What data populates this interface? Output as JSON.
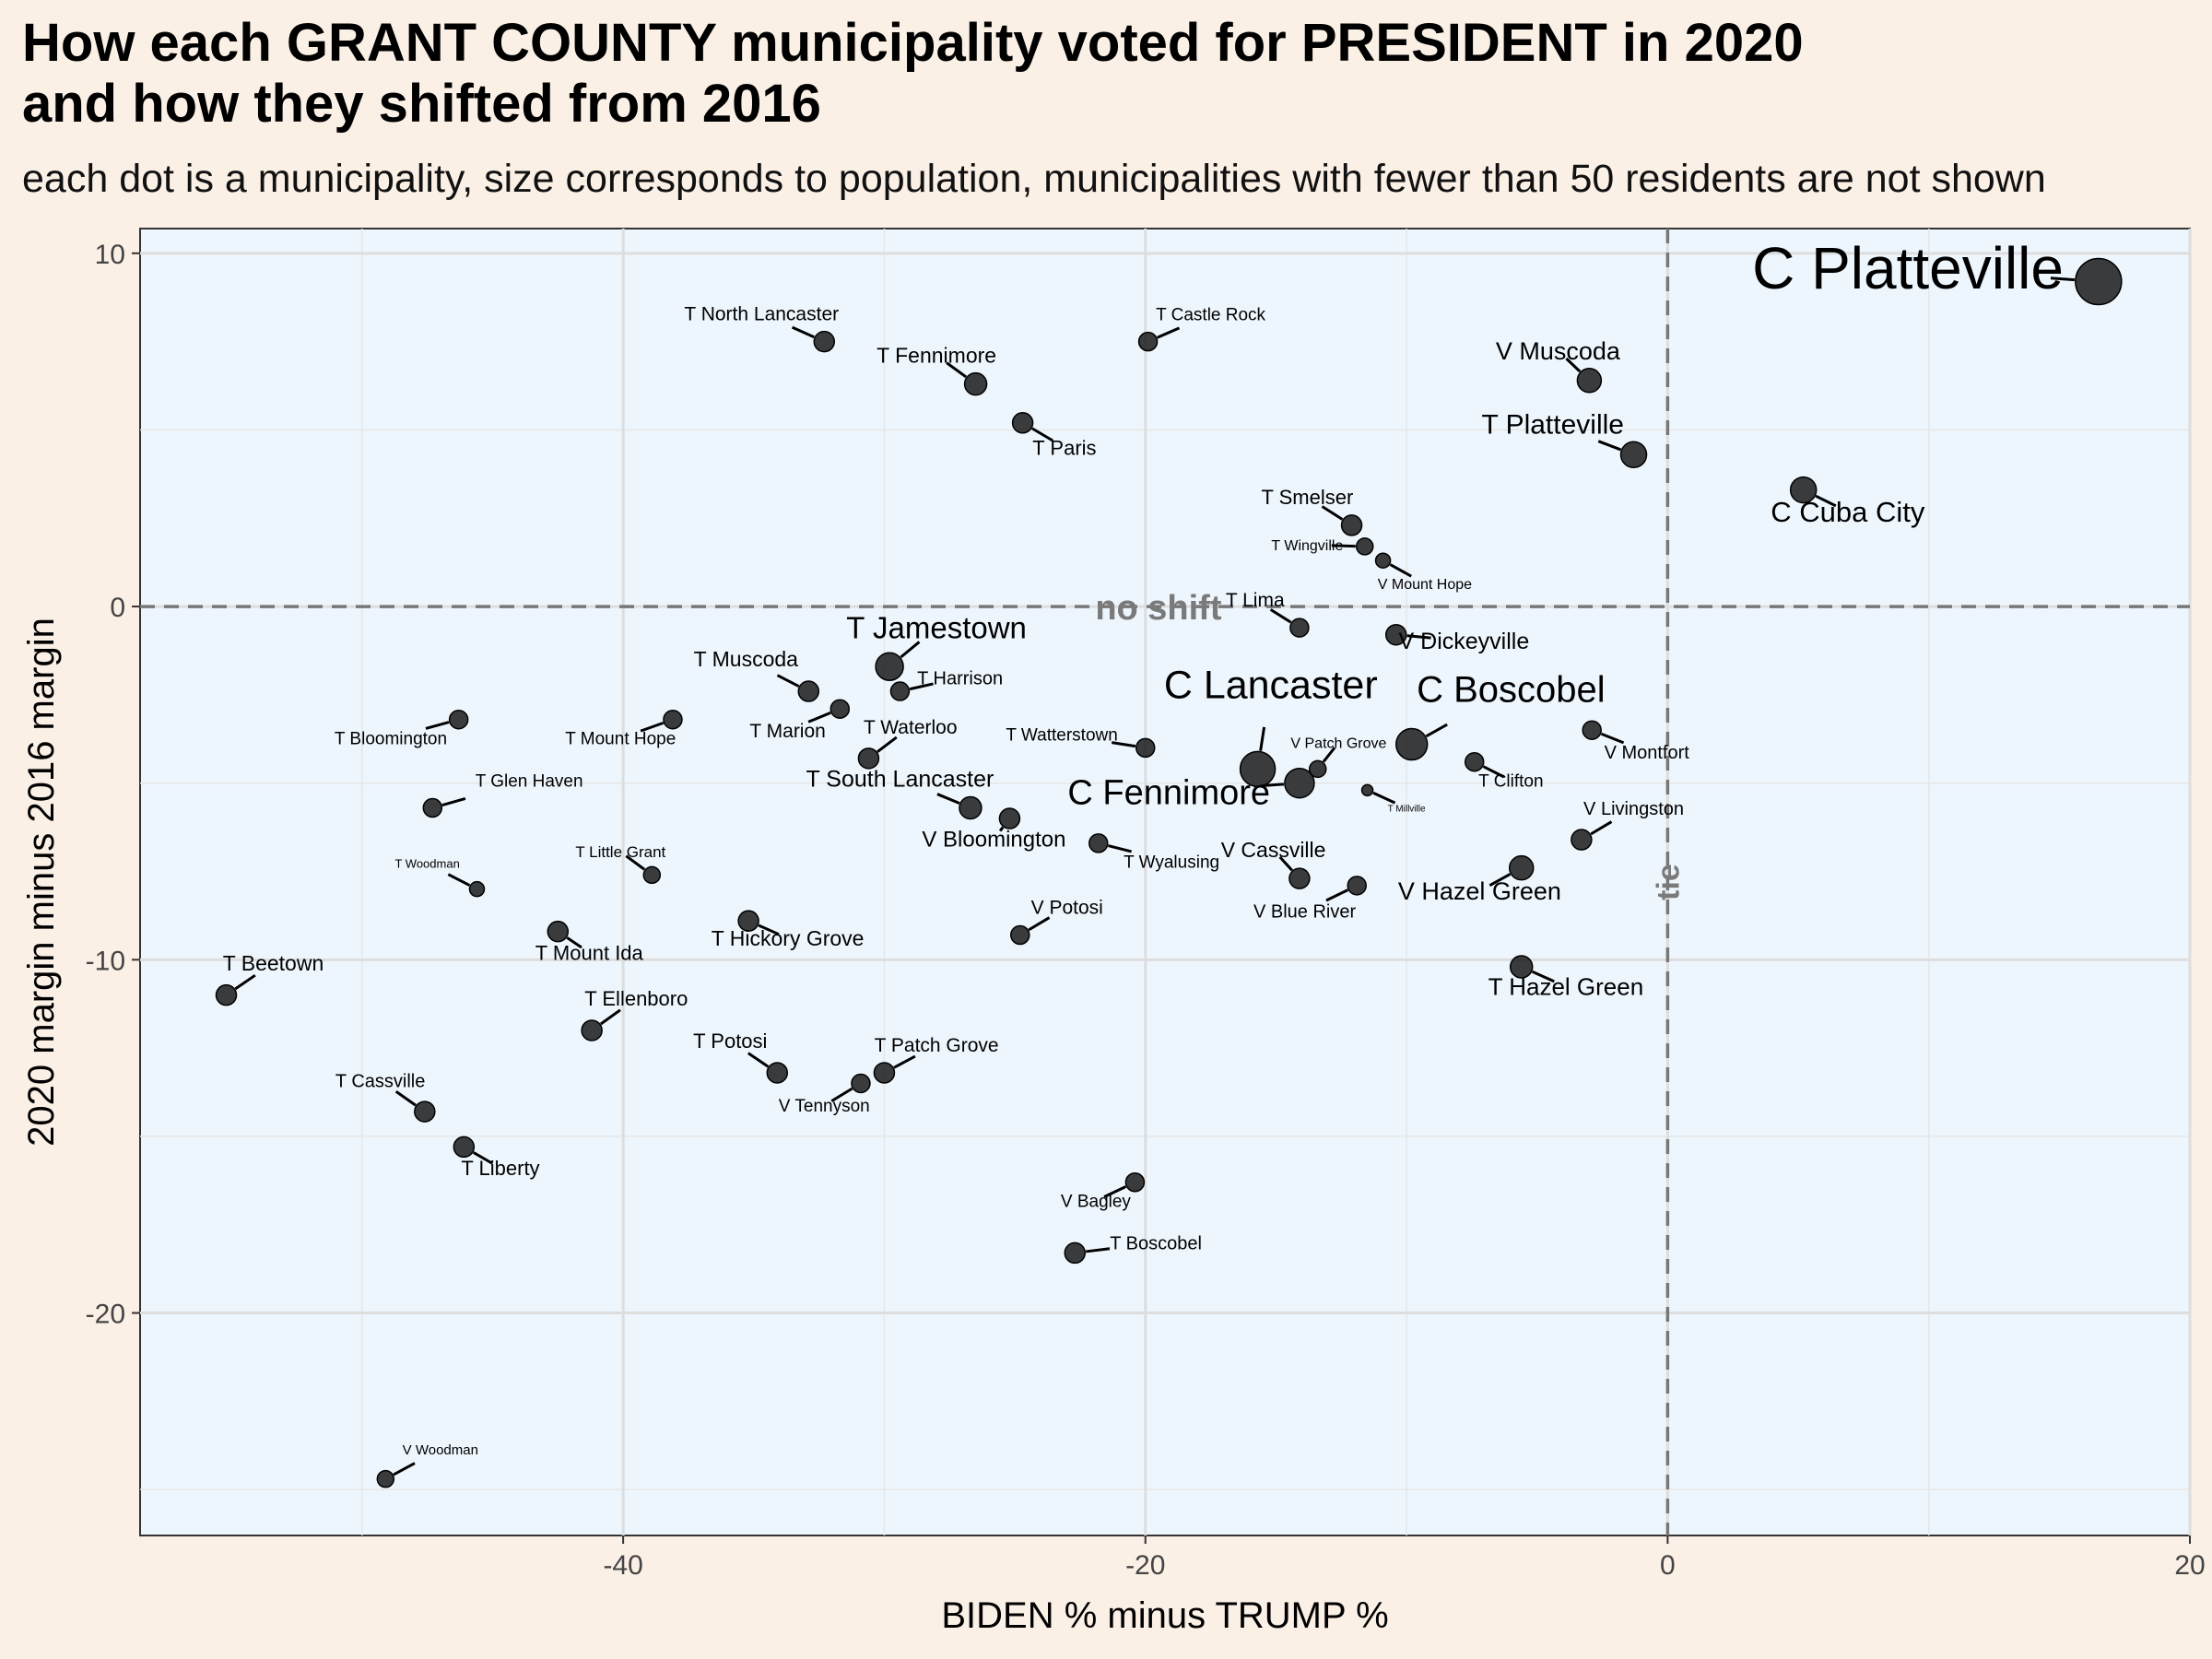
{
  "chart_data": {
    "type": "scatter",
    "title_line1": "How each GRANT COUNTY municipality voted for PRESIDENT in 2020",
    "title_line2": "and how they shifted from 2016",
    "subtitle": "each dot is a municipality, size corresponds to population, municipalities with fewer than 50 residents are not shown",
    "xlabel": "BIDEN % minus TRUMP %",
    "ylabel": "2020 margin minus 2016 margin",
    "xlim": [
      -58.5,
      20
    ],
    "ylim": [
      -26.3,
      10.7
    ],
    "xticks": [
      -40,
      -20,
      0,
      20
    ],
    "yticks": [
      10,
      0,
      -10,
      -20
    ],
    "tick_labels_x": [
      "-40",
      "-20",
      "0",
      "20"
    ],
    "tick_labels_y": [
      "10",
      "0",
      "-10",
      "-20"
    ],
    "hline_label": "no shift",
    "vline_label": "tie",
    "point_color": "#1a1a1a",
    "panel_color": "#eef6fd",
    "points": [
      {
        "name": "C Platteville",
        "x": 16.5,
        "y": 9.2,
        "r": 25,
        "lx": 9.2,
        "ly": 9.0,
        "fs": 64
      },
      {
        "name": "V Muscoda",
        "x": -3.0,
        "y": 6.4,
        "r": 13,
        "lx": -4.2,
        "ly": 7.0,
        "fs": 27
      },
      {
        "name": "T Platteville",
        "x": -1.3,
        "y": 4.3,
        "r": 14,
        "lx": -4.4,
        "ly": 4.9,
        "fs": 30
      },
      {
        "name": "C Cuba City",
        "x": 5.2,
        "y": 3.3,
        "r": 14,
        "lx": 6.9,
        "ly": 2.4,
        "fs": 31
      },
      {
        "name": "T North Lancaster",
        "x": -32.3,
        "y": 7.5,
        "r": 11,
        "lx": -34.7,
        "ly": 8.1,
        "fs": 21
      },
      {
        "name": "T Castle Rock",
        "x": -19.9,
        "y": 7.5,
        "r": 10,
        "lx": -17.5,
        "ly": 8.1,
        "fs": 19
      },
      {
        "name": "T Fennimore",
        "x": -26.5,
        "y": 6.3,
        "r": 12,
        "lx": -28.0,
        "ly": 6.9,
        "fs": 23
      },
      {
        "name": "T Paris",
        "x": -24.7,
        "y": 5.2,
        "r": 11,
        "lx": -23.1,
        "ly": 4.3,
        "fs": 22
      },
      {
        "name": "T Smelser",
        "x": -12.1,
        "y": 2.3,
        "r": 11,
        "lx": -13.8,
        "ly": 2.9,
        "fs": 22
      },
      {
        "name": "T Wingville",
        "x": -11.6,
        "y": 1.7,
        "r": 9,
        "lx": -13.8,
        "ly": 1.6,
        "fs": 16
      },
      {
        "name": "V Mount Hope",
        "x": -10.9,
        "y": 1.3,
        "r": 8,
        "lx": -9.3,
        "ly": 0.5,
        "fs": 16
      },
      {
        "name": "T Lima",
        "x": -14.1,
        "y": -0.6,
        "r": 10,
        "lx": -15.8,
        "ly": 0.0,
        "fs": 21
      },
      {
        "name": "V Dickeyville",
        "x": -10.4,
        "y": -0.8,
        "r": 11,
        "lx": -7.8,
        "ly": -1.2,
        "fs": 25
      },
      {
        "name": "T Jamestown",
        "x": -29.8,
        "y": -1.7,
        "r": 15,
        "lx": -28.0,
        "ly": -0.9,
        "fs": 33
      },
      {
        "name": "T Harrison",
        "x": -29.4,
        "y": -2.4,
        "r": 10,
        "lx": -27.1,
        "ly": -2.2,
        "fs": 20
      },
      {
        "name": "T Muscoda",
        "x": -32.9,
        "y": -2.4,
        "r": 11,
        "lx": -35.3,
        "ly": -1.7,
        "fs": 23
      },
      {
        "name": "T Marion",
        "x": -31.7,
        "y": -2.9,
        "r": 10,
        "lx": -33.7,
        "ly": -3.7,
        "fs": 21
      },
      {
        "name": "T Waterloo",
        "x": -30.6,
        "y": -4.3,
        "r": 11,
        "lx": -29.0,
        "ly": -3.6,
        "fs": 21
      },
      {
        "name": "T Bloomington",
        "x": -46.3,
        "y": -3.2,
        "r": 10,
        "lx": -48.9,
        "ly": -3.9,
        "fs": 19
      },
      {
        "name": "T Mount Hope",
        "x": -38.1,
        "y": -3.2,
        "r": 10,
        "lx": -40.1,
        "ly": -3.9,
        "fs": 19
      },
      {
        "name": "T Watterstown",
        "x": -20.0,
        "y": -4.0,
        "r": 10,
        "lx": -23.2,
        "ly": -3.8,
        "fs": 19
      },
      {
        "name": "C Lancaster",
        "x": -15.7,
        "y": -4.6,
        "r": 19,
        "lx": -15.2,
        "ly": -2.6,
        "fs": 43
      },
      {
        "name": "V Patch Grove",
        "x": -13.4,
        "y": -4.6,
        "r": 9,
        "lx": -12.6,
        "ly": -4.0,
        "fs": 16
      },
      {
        "name": "C Boscobel",
        "x": -9.8,
        "y": -3.9,
        "r": 17,
        "lx": -6.0,
        "ly": -2.7,
        "fs": 40
      },
      {
        "name": "T Clifton",
        "x": -7.4,
        "y": -4.4,
        "r": 10,
        "lx": -6.0,
        "ly": -5.1,
        "fs": 19
      },
      {
        "name": "V Montfort",
        "x": -2.9,
        "y": -3.5,
        "r": 10,
        "lx": -0.8,
        "ly": -4.3,
        "fs": 20
      },
      {
        "name": "C Fennimore",
        "x": -14.1,
        "y": -5.0,
        "r": 16,
        "lx": -19.1,
        "ly": -5.6,
        "fs": 38
      },
      {
        "name": "T Millville",
        "x": -11.5,
        "y": -5.2,
        "r": 6,
        "lx": -10.0,
        "ly": -5.8,
        "fs": 10
      },
      {
        "name": "T South Lancaster",
        "x": -26.7,
        "y": -5.7,
        "r": 12,
        "lx": -29.4,
        "ly": -5.1,
        "fs": 25
      },
      {
        "name": "V Bloomington",
        "x": -25.2,
        "y": -6.0,
        "r": 11,
        "lx": -25.8,
        "ly": -6.8,
        "fs": 24
      },
      {
        "name": "T Glen Haven",
        "x": -47.3,
        "y": -5.7,
        "r": 10,
        "lx": -43.6,
        "ly": -5.1,
        "fs": 19
      },
      {
        "name": "V Livingston",
        "x": -3.3,
        "y": -6.6,
        "r": 11,
        "lx": -1.3,
        "ly": -5.9,
        "fs": 20
      },
      {
        "name": "T Wyalusing",
        "x": -21.8,
        "y": -6.7,
        "r": 10,
        "lx": -19.0,
        "ly": -7.4,
        "fs": 19
      },
      {
        "name": "T Little Grant",
        "x": -38.9,
        "y": -7.6,
        "r": 9,
        "lx": -40.1,
        "ly": -7.1,
        "fs": 17
      },
      {
        "name": "T Woodman",
        "x": -45.6,
        "y": -8.0,
        "r": 8,
        "lx": -47.5,
        "ly": -7.4,
        "fs": 13
      },
      {
        "name": "V Cassville",
        "x": -14.1,
        "y": -7.7,
        "r": 11,
        "lx": -15.1,
        "ly": -7.1,
        "fs": 23
      },
      {
        "name": "V Blue River",
        "x": -11.9,
        "y": -7.9,
        "r": 10,
        "lx": -13.9,
        "ly": -8.8,
        "fs": 20
      },
      {
        "name": "V Hazel Green",
        "x": -5.6,
        "y": -7.4,
        "r": 13,
        "lx": -7.2,
        "ly": -8.3,
        "fs": 27
      },
      {
        "name": "V Potosi",
        "x": -24.8,
        "y": -9.3,
        "r": 10,
        "lx": -23.0,
        "ly": -8.7,
        "fs": 21
      },
      {
        "name": "T Mount Ida",
        "x": -42.5,
        "y": -9.2,
        "r": 11,
        "lx": -41.3,
        "ly": -10.0,
        "fs": 22
      },
      {
        "name": "T Hickory Grove",
        "x": -35.2,
        "y": -8.9,
        "r": 11,
        "lx": -33.7,
        "ly": -9.6,
        "fs": 23
      },
      {
        "name": "T Hazel Green",
        "x": -5.6,
        "y": -10.2,
        "r": 12,
        "lx": -3.9,
        "ly": -11.0,
        "fs": 26
      },
      {
        "name": "T Beetown",
        "x": -55.2,
        "y": -11.0,
        "r": 11,
        "lx": -53.4,
        "ly": -10.3,
        "fs": 23
      },
      {
        "name": "T Ellenboro",
        "x": -41.2,
        "y": -12.0,
        "r": 11,
        "lx": -39.5,
        "ly": -11.3,
        "fs": 22
      },
      {
        "name": "T Potosi",
        "x": -34.1,
        "y": -13.2,
        "r": 11,
        "lx": -35.9,
        "ly": -12.5,
        "fs": 22
      },
      {
        "name": "T Patch Grove",
        "x": -30.0,
        "y": -13.2,
        "r": 11,
        "lx": -28.0,
        "ly": -12.6,
        "fs": 21
      },
      {
        "name": "V Tennyson",
        "x": -30.9,
        "y": -13.5,
        "r": 10,
        "lx": -32.3,
        "ly": -14.3,
        "fs": 19
      },
      {
        "name": "T Cassville",
        "x": -47.6,
        "y": -14.3,
        "r": 11,
        "lx": -49.3,
        "ly": -13.6,
        "fs": 20
      },
      {
        "name": "T Liberty",
        "x": -46.1,
        "y": -15.3,
        "r": 11,
        "lx": -44.7,
        "ly": -16.1,
        "fs": 22
      },
      {
        "name": "V Bagley",
        "x": -20.4,
        "y": -16.3,
        "r": 10,
        "lx": -21.9,
        "ly": -17.0,
        "fs": 19
      },
      {
        "name": "T Boscobel",
        "x": -22.7,
        "y": -18.3,
        "r": 11,
        "lx": -19.6,
        "ly": -18.2,
        "fs": 20
      },
      {
        "name": "V Woodman",
        "x": -49.1,
        "y": -24.7,
        "r": 9,
        "lx": -47.0,
        "ly": -24.0,
        "fs": 15
      }
    ]
  }
}
